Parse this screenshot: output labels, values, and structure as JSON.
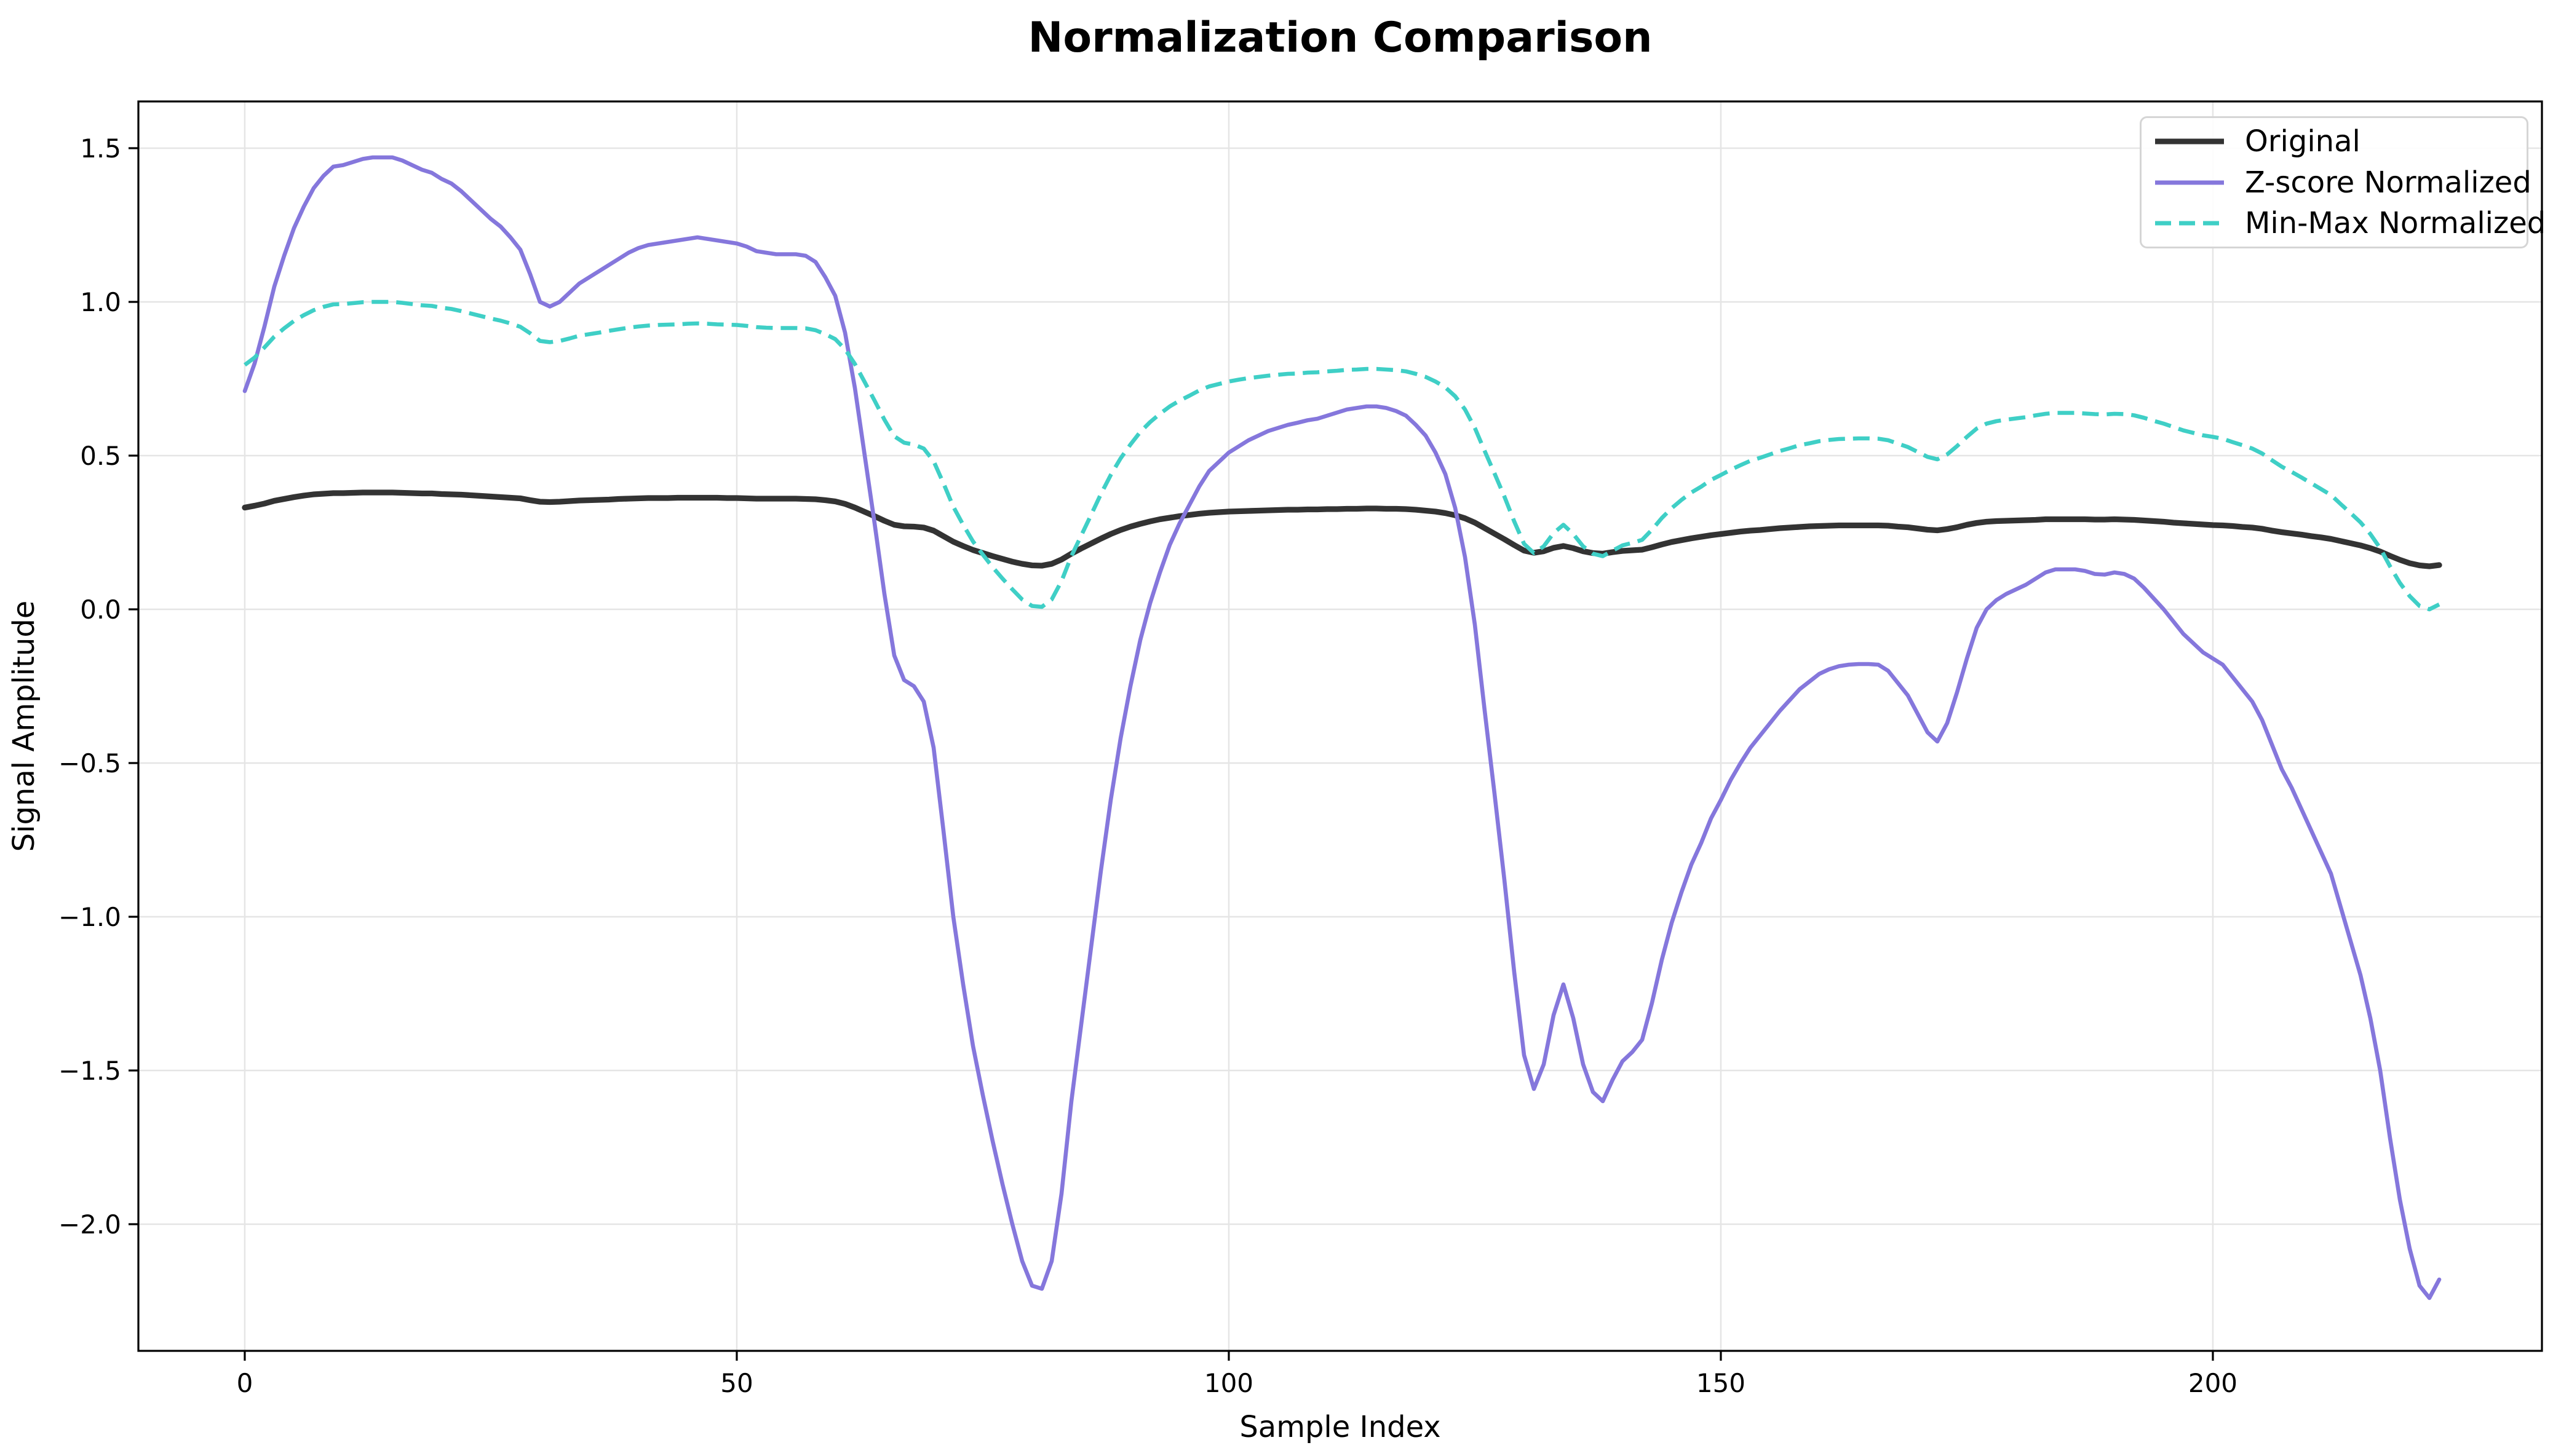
{
  "title": "Normalization Comparison",
  "axes": {
    "xlabel": "Sample Index",
    "ylabel": "Signal Amplitude",
    "x_tick_values": [
      0,
      50,
      100,
      150,
      200
    ],
    "x_tick_labels": [
      "0",
      "50",
      "100",
      "150",
      "200"
    ],
    "y_tick_values": [
      1.5,
      1.0,
      0.5,
      0.0,
      -0.5,
      -1.0,
      -1.5,
      -2.0
    ],
    "y_tick_labels": [
      "1.5",
      "1.0",
      "0.5",
      "0.0",
      "−0.5",
      "−1.0",
      "−1.5",
      "−2.0"
    ],
    "x_range": [
      -10.81,
      233.44
    ],
    "y_range": [
      -2.412,
      1.652
    ],
    "grid": true,
    "grid_color": "#e5e5e5",
    "spine_color": "#000000",
    "background": "#ffffff"
  },
  "legend": {
    "position": "upper right",
    "entries": [
      {
        "label": "Original",
        "color": "#333333",
        "style": "solid",
        "linewidth": 9
      },
      {
        "label": "Z-score Normalized",
        "color": "#8577DC",
        "style": "solid",
        "linewidth": 7
      },
      {
        "label": "Min-Max Normalized",
        "color": "#3FCFC6",
        "style": "dashed",
        "linewidth": 7
      }
    ]
  },
  "chart_data": {
    "type": "line",
    "title": "Normalization Comparison",
    "xlabel": "Sample Index",
    "ylabel": "Signal Amplitude",
    "x_start": 0,
    "x_step": 1,
    "n_points": 224,
    "legend_position": "upper right",
    "grid": true,
    "series": [
      {
        "name": "Original",
        "color": "#333333",
        "style": "solid",
        "linewidth": 9.3,
        "values": [
          0.331,
          0.337,
          0.344,
          0.353,
          0.359,
          0.365,
          0.37,
          0.374,
          0.376,
          0.378,
          0.378,
          0.379,
          0.38,
          0.38,
          0.38,
          0.38,
          0.379,
          0.378,
          0.377,
          0.377,
          0.375,
          0.374,
          0.373,
          0.371,
          0.369,
          0.367,
          0.365,
          0.363,
          0.361,
          0.355,
          0.35,
          0.349,
          0.35,
          0.352,
          0.354,
          0.355,
          0.356,
          0.357,
          0.359,
          0.36,
          0.361,
          0.362,
          0.362,
          0.362,
          0.363,
          0.363,
          0.363,
          0.363,
          0.363,
          0.362,
          0.362,
          0.361,
          0.36,
          0.36,
          0.36,
          0.36,
          0.36,
          0.359,
          0.358,
          0.355,
          0.351,
          0.343,
          0.331,
          0.317,
          0.303,
          0.288,
          0.275,
          0.27,
          0.269,
          0.266,
          0.256,
          0.238,
          0.22,
          0.206,
          0.193,
          0.183,
          0.173,
          0.164,
          0.155,
          0.148,
          0.143,
          0.142,
          0.148,
          0.162,
          0.181,
          0.198,
          0.214,
          0.23,
          0.245,
          0.258,
          0.269,
          0.278,
          0.286,
          0.293,
          0.298,
          0.303,
          0.307,
          0.311,
          0.314,
          0.316,
          0.318,
          0.319,
          0.32,
          0.321,
          0.322,
          0.323,
          0.324,
          0.324,
          0.325,
          0.325,
          0.326,
          0.326,
          0.327,
          0.327,
          0.328,
          0.328,
          0.327,
          0.327,
          0.326,
          0.324,
          0.321,
          0.318,
          0.313,
          0.306,
          0.296,
          0.282,
          0.264,
          0.246,
          0.228,
          0.209,
          0.191,
          0.184,
          0.189,
          0.2,
          0.206,
          0.199,
          0.189,
          0.183,
          0.181,
          0.186,
          0.19,
          0.192,
          0.194,
          0.202,
          0.211,
          0.219,
          0.225,
          0.231,
          0.236,
          0.241,
          0.245,
          0.249,
          0.253,
          0.256,
          0.258,
          0.261,
          0.264,
          0.266,
          0.268,
          0.27,
          0.271,
          0.272,
          0.273,
          0.273,
          0.273,
          0.273,
          0.273,
          0.272,
          0.269,
          0.267,
          0.263,
          0.259,
          0.257,
          0.261,
          0.267,
          0.275,
          0.281,
          0.285,
          0.287,
          0.288,
          0.289,
          0.29,
          0.291,
          0.293,
          0.293,
          0.293,
          0.293,
          0.293,
          0.292,
          0.292,
          0.293,
          0.292,
          0.291,
          0.289,
          0.287,
          0.285,
          0.282,
          0.28,
          0.278,
          0.276,
          0.274,
          0.273,
          0.271,
          0.268,
          0.266,
          0.262,
          0.256,
          0.251,
          0.247,
          0.243,
          0.238,
          0.234,
          0.229,
          0.222,
          0.215,
          0.208,
          0.199,
          0.188,
          0.174,
          0.161,
          0.15,
          0.143,
          0.14,
          0.144
        ]
      },
      {
        "name": "Z-score Normalized",
        "color": "#8577DC",
        "style": "solid",
        "linewidth": 6.6,
        "values": [
          0.71,
          0.8,
          0.92,
          1.05,
          1.15,
          1.24,
          1.31,
          1.37,
          1.41,
          1.44,
          1.445,
          1.455,
          1.465,
          1.47,
          1.47,
          1.47,
          1.46,
          1.445,
          1.43,
          1.42,
          1.4,
          1.385,
          1.36,
          1.33,
          1.3,
          1.27,
          1.245,
          1.21,
          1.17,
          1.09,
          1.0,
          0.985,
          1.0,
          1.03,
          1.06,
          1.08,
          1.1,
          1.12,
          1.14,
          1.16,
          1.175,
          1.185,
          1.19,
          1.195,
          1.2,
          1.205,
          1.21,
          1.205,
          1.2,
          1.195,
          1.19,
          1.18,
          1.165,
          1.16,
          1.155,
          1.155,
          1.155,
          1.15,
          1.13,
          1.08,
          1.02,
          0.9,
          0.72,
          0.5,
          0.28,
          0.05,
          -0.15,
          -0.23,
          -0.25,
          -0.3,
          -0.45,
          -0.72,
          -1.0,
          -1.22,
          -1.42,
          -1.58,
          -1.73,
          -1.87,
          -2.0,
          -2.12,
          -2.2,
          -2.21,
          -2.12,
          -1.9,
          -1.6,
          -1.35,
          -1.1,
          -0.85,
          -0.62,
          -0.42,
          -0.25,
          -0.1,
          0.02,
          0.12,
          0.21,
          0.28,
          0.34,
          0.4,
          0.45,
          0.48,
          0.51,
          0.53,
          0.55,
          0.565,
          0.58,
          0.59,
          0.6,
          0.607,
          0.615,
          0.62,
          0.63,
          0.64,
          0.65,
          0.655,
          0.66,
          0.66,
          0.655,
          0.645,
          0.63,
          0.6,
          0.565,
          0.51,
          0.44,
          0.33,
          0.17,
          -0.05,
          -0.33,
          -0.6,
          -0.88,
          -1.18,
          -1.45,
          -1.56,
          -1.48,
          -1.32,
          -1.22,
          -1.33,
          -1.48,
          -1.57,
          -1.6,
          -1.53,
          -1.47,
          -1.44,
          -1.4,
          -1.28,
          -1.14,
          -1.02,
          -0.92,
          -0.83,
          -0.76,
          -0.68,
          -0.62,
          -0.555,
          -0.5,
          -0.45,
          -0.41,
          -0.37,
          -0.33,
          -0.295,
          -0.26,
          -0.235,
          -0.21,
          -0.195,
          -0.185,
          -0.18,
          -0.178,
          -0.178,
          -0.18,
          -0.2,
          -0.24,
          -0.28,
          -0.34,
          -0.4,
          -0.43,
          -0.37,
          -0.27,
          -0.16,
          -0.06,
          0.0,
          0.03,
          0.05,
          0.065,
          0.08,
          0.1,
          0.12,
          0.13,
          0.13,
          0.13,
          0.125,
          0.115,
          0.113,
          0.12,
          0.115,
          0.1,
          0.07,
          0.035,
          0.0,
          -0.04,
          -0.08,
          -0.11,
          -0.14,
          -0.16,
          -0.18,
          -0.22,
          -0.26,
          -0.3,
          -0.36,
          -0.44,
          -0.52,
          -0.58,
          -0.65,
          -0.72,
          -0.79,
          -0.86,
          -0.97,
          -1.08,
          -1.19,
          -1.33,
          -1.5,
          -1.72,
          -1.92,
          -2.08,
          -2.2,
          -2.24,
          -2.18
        ]
      },
      {
        "name": "Min-Max Normalized",
        "color": "#3FCFC6",
        "style": "dashed",
        "linewidth": 6.6,
        "values": [
          0.795,
          0.819,
          0.852,
          0.887,
          0.914,
          0.938,
          0.957,
          0.973,
          0.984,
          0.992,
          0.993,
          0.996,
          0.999,
          1.0,
          1.0,
          1.0,
          0.997,
          0.993,
          0.989,
          0.987,
          0.981,
          0.977,
          0.97,
          0.962,
          0.954,
          0.946,
          0.939,
          0.93,
          0.919,
          0.898,
          0.873,
          0.869,
          0.873,
          0.881,
          0.89,
          0.895,
          0.9,
          0.906,
          0.911,
          0.916,
          0.92,
          0.923,
          0.925,
          0.926,
          0.927,
          0.929,
          0.93,
          0.929,
          0.927,
          0.926,
          0.925,
          0.922,
          0.918,
          0.916,
          0.915,
          0.915,
          0.915,
          0.914,
          0.908,
          0.895,
          0.879,
          0.846,
          0.798,
          0.739,
          0.679,
          0.617,
          0.563,
          0.542,
          0.536,
          0.523,
          0.482,
          0.41,
          0.334,
          0.275,
          0.221,
          0.178,
          0.137,
          0.1,
          0.065,
          0.032,
          0.011,
          0.008,
          0.032,
          0.092,
          0.173,
          0.24,
          0.307,
          0.375,
          0.437,
          0.491,
          0.536,
          0.577,
          0.609,
          0.636,
          0.66,
          0.679,
          0.695,
          0.712,
          0.725,
          0.733,
          0.741,
          0.747,
          0.752,
          0.756,
          0.76,
          0.763,
          0.766,
          0.767,
          0.77,
          0.771,
          0.774,
          0.776,
          0.779,
          0.78,
          0.782,
          0.782,
          0.78,
          0.778,
          0.774,
          0.766,
          0.756,
          0.741,
          0.722,
          0.693,
          0.65,
          0.59,
          0.515,
          0.442,
          0.367,
          0.286,
          0.213,
          0.183,
          0.205,
          0.248,
          0.275,
          0.245,
          0.205,
          0.181,
          0.173,
          0.191,
          0.208,
          0.216,
          0.226,
          0.259,
          0.297,
          0.329,
          0.356,
          0.38,
          0.399,
          0.421,
          0.437,
          0.454,
          0.469,
          0.483,
          0.493,
          0.504,
          0.515,
          0.524,
          0.534,
          0.54,
          0.547,
          0.551,
          0.554,
          0.555,
          0.556,
          0.556,
          0.555,
          0.55,
          0.539,
          0.528,
          0.512,
          0.496,
          0.488,
          0.504,
          0.531,
          0.561,
          0.588,
          0.604,
          0.612,
          0.617,
          0.621,
          0.625,
          0.631,
          0.636,
          0.639,
          0.639,
          0.639,
          0.637,
          0.635,
          0.634,
          0.636,
          0.635,
          0.631,
          0.623,
          0.613,
          0.604,
          0.593,
          0.582,
          0.574,
          0.566,
          0.561,
          0.555,
          0.544,
          0.534,
          0.523,
          0.507,
          0.485,
          0.464,
          0.447,
          0.429,
          0.41,
          0.391,
          0.372,
          0.342,
          0.313,
          0.283,
          0.245,
          0.199,
          0.14,
          0.086,
          0.043,
          0.011,
          0.0,
          0.016
        ]
      }
    ]
  }
}
